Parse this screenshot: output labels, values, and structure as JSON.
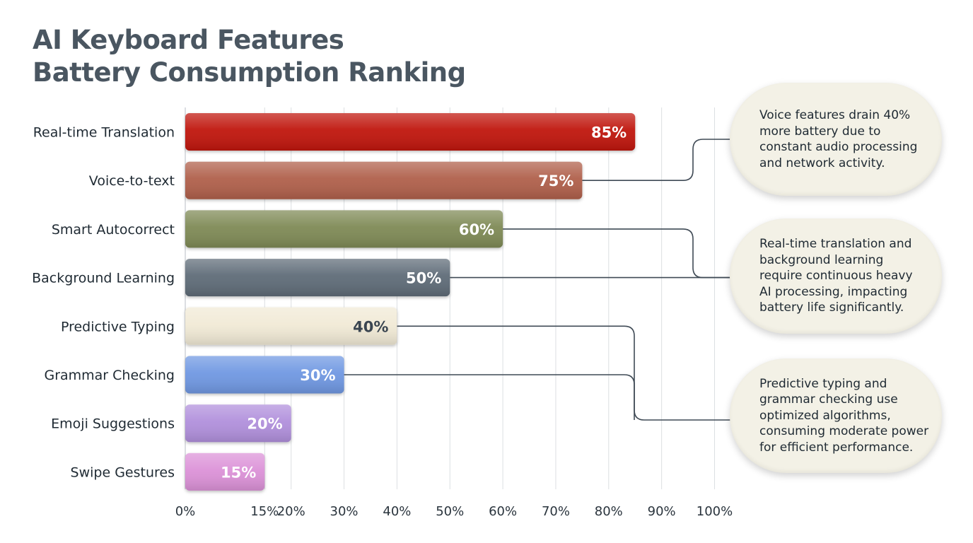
{
  "title_line1": "AI Keyboard Features",
  "title_line2": "Battery Consumption Ranking",
  "chart_data": {
    "type": "bar",
    "orientation": "horizontal",
    "categories": [
      "Real-time Translation",
      "Voice-to-text",
      "Smart Autocorrect",
      "Background Learning",
      "Predictive Typing",
      "Grammar Checking",
      "Emoji Suggestions",
      "Swipe Gestures"
    ],
    "values": [
      85,
      75,
      60,
      50,
      40,
      30,
      20,
      15
    ],
    "value_labels": [
      "85%",
      "75%",
      "60%",
      "50%",
      "40%",
      "30%",
      "20%",
      "15%"
    ],
    "colors": [
      "#c0160e",
      "#b0604c",
      "#7f8a57",
      "#5f6c78",
      "#f1ead6",
      "#6f98e2",
      "#b190dc",
      "#dc92d8"
    ],
    "label_colors": [
      "#ffffff",
      "#ffffff",
      "#ffffff",
      "#ffffff",
      "#3a4550",
      "#ffffff",
      "#ffffff",
      "#ffffff"
    ],
    "x_ticks": [
      0,
      15,
      20,
      30,
      40,
      50,
      60,
      70,
      80,
      90,
      100
    ],
    "x_tick_labels": [
      "0%",
      "15%",
      "20%",
      "30%",
      "40%",
      "50%",
      "60%",
      "70%",
      "80%",
      "90%",
      "100%"
    ],
    "xlim": [
      0,
      100
    ],
    "grid": true
  },
  "callouts": [
    {
      "text": "Voice features drain 40% more battery due to constant audio processing and network activity.",
      "lines": [
        "Voice features drain 40%",
        "more battery due to",
        "constant audio processing",
        "and network activity."
      ]
    },
    {
      "text": "Real-time translation and background learning require continuous heavy AI processing, impacting battery life significantly.",
      "lines": [
        "Real-time translation and",
        "background learning",
        "require continuous heavy",
        "AI processing, impacting",
        "battery life significantly."
      ]
    },
    {
      "text": "Predictive typing and grammar checking use optimized algorithms, consuming moderate power for efficient performance.",
      "lines": [
        "Predictive typing and",
        "grammar checking use",
        "optimized algorithms,",
        "consuming moderate power",
        "for efficient performance."
      ]
    }
  ]
}
